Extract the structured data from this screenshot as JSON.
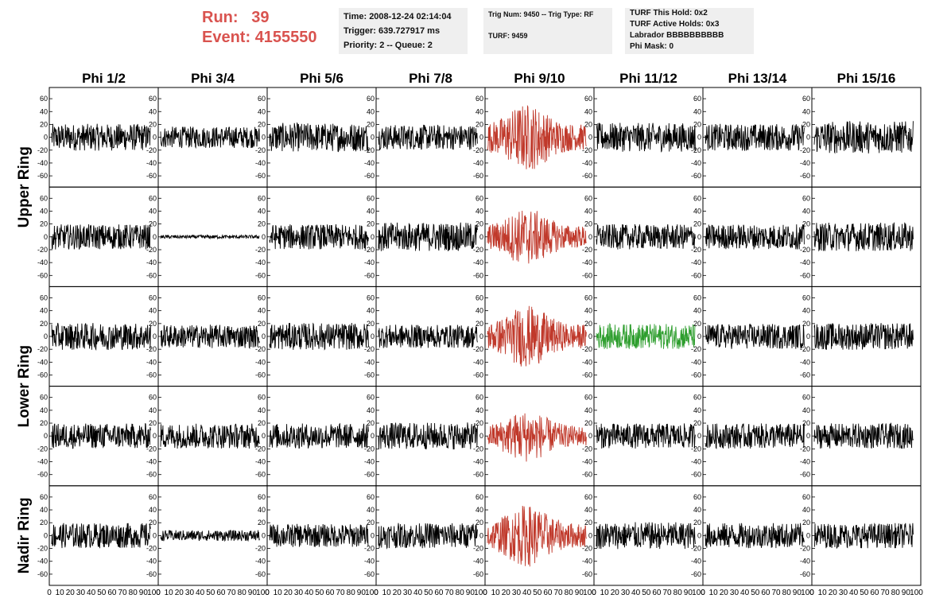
{
  "header": {
    "run_label": "Run:",
    "run_value": "39",
    "event_label": "Event:",
    "event_value": "4155550"
  },
  "info_time": {
    "time": "Time: 2008-12-24 02:14:04",
    "trigger": "Trigger: 639.727917 ms",
    "priority": "Priority: 2 -- Queue: 2"
  },
  "info_trig": {
    "trig": "Trig Num: 9450 -- Trig Type: RF",
    "turf": "TURF: 9459"
  },
  "info_turf": {
    "this_hold": "TURF This Hold: 0x2",
    "active_holds": "TURF Active Holds: 0x3",
    "labrador": "Labrador BBBBBBBBBB",
    "phi_mask": "Phi Mask: 0"
  },
  "chart_data": {
    "type": "line",
    "columns": [
      "Phi 1/2",
      "Phi 3/4",
      "Phi 5/6",
      "Phi 7/8",
      "Phi 9/10",
      "Phi 11/12",
      "Phi 13/14",
      "Phi 15/16"
    ],
    "rows": [
      "Upper Ring",
      "Upper Ring",
      "Lower Ring",
      "Lower Ring",
      "Nadir Ring"
    ],
    "row_labels": [
      {
        "text": "Upper Ring",
        "span_rows": [
          0,
          1
        ]
      },
      {
        "text": "Lower Ring",
        "span_rows": [
          2,
          3
        ]
      },
      {
        "text": "Nadir Ring",
        "span_rows": [
          4,
          4
        ]
      }
    ],
    "x_ticks": [
      "0",
      "10",
      "20",
      "30",
      "40",
      "50",
      "60",
      "70",
      "80",
      "90",
      "100"
    ],
    "xlim": [
      0,
      100
    ],
    "ylim": [
      -70,
      70
    ],
    "y_ticks": [
      "60",
      "40",
      "20",
      "0",
      "-20",
      "-40",
      "-60"
    ],
    "y_tick_values": [
      60,
      40,
      20,
      0,
      -20,
      -40,
      -60
    ],
    "colors": {
      "default": "#000000",
      "triggered": "#c0392b",
      "l1": "#2e9e2e"
    },
    "highlight": [
      {
        "row": 0,
        "col": 4,
        "color": "triggered"
      },
      {
        "row": 1,
        "col": 4,
        "color": "triggered"
      },
      {
        "row": 2,
        "col": 4,
        "color": "triggered"
      },
      {
        "row": 2,
        "col": 5,
        "color": "l1"
      },
      {
        "row": 3,
        "col": 4,
        "color": "triggered"
      },
      {
        "row": 4,
        "col": 4,
        "color": "triggered"
      }
    ],
    "amplitudes": [
      [
        15,
        12,
        16,
        14,
        26,
        16,
        15,
        18
      ],
      [
        14,
        2,
        14,
        16,
        22,
        14,
        14,
        16
      ],
      [
        15,
        13,
        15,
        13,
        24,
        14,
        14,
        15
      ],
      [
        14,
        14,
        14,
        15,
        20,
        14,
        14,
        14
      ],
      [
        14,
        6,
        13,
        14,
        24,
        15,
        14,
        14
      ]
    ],
    "points_per_trace": 260
  }
}
